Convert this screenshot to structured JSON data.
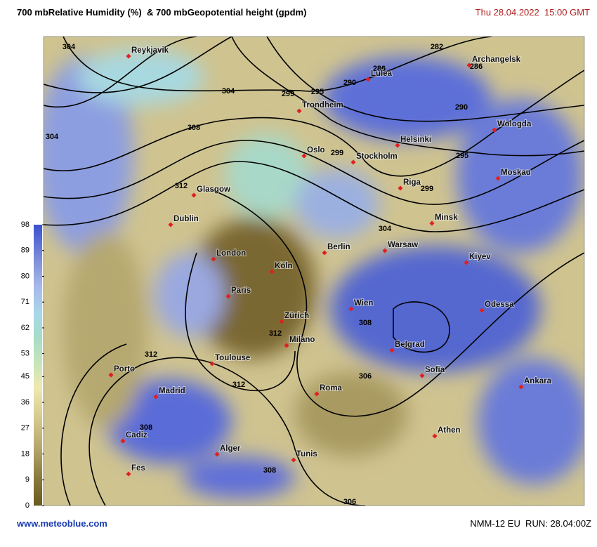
{
  "header": {
    "title": "700 mbRelative Humidity (%)  & 700 mbGeopotential height (gpdm)",
    "datetime": "Thu 28.04.2022  15:00 GMT"
  },
  "colorbar": {
    "lim": [
      0,
      98
    ],
    "ticks": [
      0,
      9,
      18,
      27,
      36,
      45,
      53,
      62,
      71,
      80,
      89,
      98
    ]
  },
  "map": {
    "cities": [
      "Reykjavik",
      "Archangelsk",
      "Lulea",
      "Trondheim",
      "Wologda",
      "Helsinki",
      "Oslo",
      "Stockholm",
      "Moskau",
      "Riga",
      "Glasgow",
      "Minsk",
      "Dublin",
      "Berlin",
      "Warsaw",
      "London",
      "Kiyev",
      "Köln",
      "Paris",
      "Wien",
      "Odessa",
      "Zürich",
      "Milano",
      "Belgrad",
      "Toulouse",
      "Sofia",
      "Porto",
      "Roma",
      "Ankara",
      "Madrid",
      "Athen",
      "Cadiz",
      "Alger",
      "Tunis",
      "Fes"
    ],
    "contour_labels": [
      304,
      304,
      304,
      308,
      299,
      295,
      290,
      286,
      286,
      282,
      290,
      299,
      299,
      295,
      304,
      312,
      308,
      312,
      312,
      312,
      306,
      306,
      308,
      308
    ]
  },
  "footer": {
    "site": "www.meteoblue.com",
    "model": "NMM-12 EU  RUN: 28.04:00Z"
  }
}
